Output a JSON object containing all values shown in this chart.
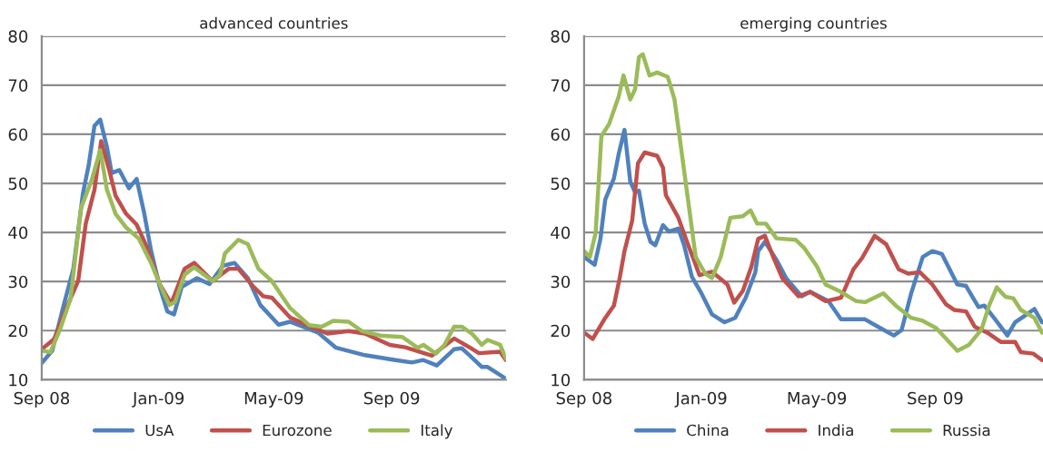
{
  "chart_data": [
    {
      "type": "line",
      "title": "advanced countries",
      "xlim": [
        "2008-09-01",
        "2009-12-29"
      ],
      "ylim": [
        10,
        80
      ],
      "yticks": [
        10,
        20,
        30,
        40,
        50,
        60,
        70,
        80
      ],
      "xticks": [
        {
          "value": "2008-09-01",
          "label": "Sep 08"
        },
        {
          "value": "2009-01-01",
          "label": "Jan-09"
        },
        {
          "value": "2009-05-01",
          "label": "May-09"
        },
        {
          "value": "2009-09-01",
          "label": "Sep 09"
        }
      ],
      "grid": "y",
      "legend": "bottom",
      "line_style": "solid",
      "marker": "none",
      "series": [
        {
          "name": "UsA",
          "color": "#4f81bd",
          "x": [
            "2008-09-01",
            "2008-09-12",
            "2008-09-23",
            "2008-10-04",
            "2008-10-14",
            "2008-10-20",
            "2008-10-26",
            "2008-11-01",
            "2008-11-08",
            "2008-11-13",
            "2008-11-21",
            "2008-12-01",
            "2008-12-09",
            "2008-12-17",
            "2008-12-24",
            "2009-01-02",
            "2009-01-10",
            "2009-01-17",
            "2009-01-25",
            "2009-02-10",
            "2009-02-23",
            "2009-03-09",
            "2009-03-21",
            "2009-04-04",
            "2009-04-17",
            "2009-05-06",
            "2009-05-18",
            "2009-06-16",
            "2009-07-05",
            "2009-08-04",
            "2009-09-05",
            "2009-09-22",
            "2009-10-04",
            "2009-10-18",
            "2009-11-05",
            "2009-11-13",
            "2009-11-21",
            "2009-12-04",
            "2009-12-10",
            "2009-12-29"
          ],
          "values": [
            13.4,
            15.9,
            24.5,
            32.6,
            48,
            53.7,
            61.7,
            63,
            57.4,
            52.1,
            52.7,
            49,
            50.9,
            43.8,
            36.3,
            28.9,
            23.9,
            23.3,
            28.9,
            30.7,
            29.5,
            33.2,
            33.8,
            30.7,
            25.2,
            21.2,
            21.8,
            19.6,
            16.5,
            15.0,
            14.0,
            13.5,
            14.0,
            12.9,
            16.2,
            16.4,
            15.0,
            12.6,
            12.6,
            10.2
          ]
        },
        {
          "name": "Eurozone",
          "color": "#c0504d",
          "x": [
            "2008-09-01",
            "2008-09-14",
            "2008-09-28",
            "2008-10-09",
            "2008-10-17",
            "2008-10-26",
            "2008-11-02",
            "2008-11-10",
            "2008-11-17",
            "2008-11-28",
            "2008-12-09",
            "2008-12-20",
            "2009-01-02",
            "2009-01-14",
            "2009-01-28",
            "2009-02-07",
            "2009-02-26",
            "2009-03-15",
            "2009-03-25",
            "2009-04-10",
            "2009-04-20",
            "2009-04-29",
            "2009-05-18",
            "2009-06-07",
            "2009-06-26",
            "2009-07-18",
            "2009-08-04",
            "2009-08-30",
            "2009-09-15",
            "2009-09-28",
            "2009-10-13",
            "2009-11-05",
            "2009-11-21",
            "2009-12-01",
            "2009-12-23",
            "2009-12-29"
          ],
          "values": [
            16.2,
            18.3,
            25.2,
            30.1,
            41.9,
            48.7,
            58.6,
            53,
            47.5,
            43.8,
            41.6,
            36.9,
            29.5,
            25.5,
            32.6,
            33.8,
            30.1,
            32.6,
            32.6,
            28.9,
            27,
            26.7,
            22.7,
            20.9,
            19.4,
            19.9,
            19.4,
            17.1,
            16.6,
            15.8,
            14.9,
            18.4,
            16.6,
            15.4,
            15.7,
            14.0
          ]
        },
        {
          "name": "Italy",
          "color": "#9bbb59",
          "x": [
            "2008-09-01",
            "2008-09-10",
            "2008-09-20",
            "2008-10-01",
            "2008-10-12",
            "2008-10-23",
            "2008-11-01",
            "2008-11-08",
            "2008-11-17",
            "2008-11-28",
            "2008-12-11",
            "2008-12-24",
            "2009-01-02",
            "2009-01-12",
            "2009-01-18",
            "2009-01-28",
            "2009-02-07",
            "2009-02-26",
            "2009-03-06",
            "2009-03-11",
            "2009-03-25",
            "2009-04-04",
            "2009-04-15",
            "2009-04-29",
            "2009-05-18",
            "2009-06-07",
            "2009-06-20",
            "2009-07-02",
            "2009-07-18",
            "2009-08-01",
            "2009-08-20",
            "2009-09-12",
            "2009-09-28",
            "2009-10-04",
            "2009-10-17",
            "2009-10-26",
            "2009-11-05",
            "2009-11-13",
            "2009-11-24",
            "2009-12-04",
            "2009-12-10",
            "2009-12-23",
            "2009-12-29"
          ],
          "values": [
            15.9,
            15.6,
            20.2,
            26.4,
            45,
            50.6,
            56.8,
            48.7,
            43.8,
            41.0,
            38.8,
            33.8,
            29.5,
            25.2,
            25.8,
            31.4,
            32.9,
            30.1,
            31.4,
            35.7,
            38.5,
            37.6,
            32.6,
            30.1,
            24.6,
            21.1,
            20.8,
            22.0,
            21.8,
            19.9,
            19.0,
            18.7,
            16.5,
            17.1,
            15.3,
            17.1,
            20.8,
            20.8,
            19.3,
            17.1,
            18.1,
            17.1,
            14.3
          ]
        }
      ]
    },
    {
      "type": "line",
      "title": "emerging countries",
      "xlim": [
        "2008-09-01",
        "2009-12-22"
      ],
      "ylim": [
        10,
        80
      ],
      "yticks": [
        10,
        20,
        30,
        40,
        50,
        60,
        70,
        80
      ],
      "xticks": [
        {
          "value": "2008-09-01",
          "label": "Sep 08"
        },
        {
          "value": "2009-01-01",
          "label": "Jan-09"
        },
        {
          "value": "2009-05-01",
          "label": "May-09"
        },
        {
          "value": "2009-09-01",
          "label": "Sep 09"
        }
      ],
      "grid": "y",
      "legend": "bottom",
      "line_style": "solid",
      "marker": "none",
      "series": [
        {
          "name": "China",
          "color": "#4f81bd",
          "x": [
            "2008-09-01",
            "2008-09-12",
            "2008-09-18",
            "2008-09-23",
            "2008-10-02",
            "2008-10-07",
            "2008-10-13",
            "2008-10-19",
            "2008-10-24",
            "2008-10-28",
            "2008-11-03",
            "2008-11-09",
            "2008-11-14",
            "2008-11-22",
            "2008-11-28",
            "2008-12-08",
            "2008-12-14",
            "2008-12-22",
            "2009-01-01",
            "2009-01-12",
            "2009-01-25",
            "2009-02-05",
            "2009-02-16",
            "2009-02-26",
            "2009-03-01",
            "2009-03-08",
            "2009-03-20",
            "2009-03-30",
            "2009-04-15",
            "2009-04-24",
            "2009-05-13",
            "2009-05-26",
            "2009-06-20",
            "2009-07-06",
            "2009-07-20",
            "2009-07-28",
            "2009-08-07",
            "2009-08-19",
            "2009-08-29",
            "2009-09-08",
            "2009-09-24",
            "2009-10-03",
            "2009-10-16",
            "2009-10-22",
            "2009-11-01",
            "2009-11-15",
            "2009-11-23",
            "2009-12-02",
            "2009-12-13",
            "2009-12-21"
          ],
          "values": [
            35.0,
            33.4,
            38.7,
            46.7,
            51,
            56,
            60.9,
            50.4,
            48.2,
            48.5,
            41.8,
            38.1,
            37.4,
            41.5,
            40.2,
            40.8,
            37.4,
            31,
            27.6,
            23.3,
            21.7,
            22.6,
            26.7,
            31.9,
            36.2,
            38.1,
            34.4,
            30.7,
            27.0,
            27.9,
            26.0,
            22.3,
            22.3,
            20.5,
            19,
            20.1,
            27.6,
            35,
            36.2,
            35.6,
            29.4,
            29.1,
            24.8,
            25.1,
            22.6,
            19.0,
            21.7,
            22.9,
            24.4,
            21.7
          ]
        },
        {
          "name": "India",
          "color": "#c0504d",
          "x": [
            "2008-09-01",
            "2008-09-10",
            "2008-09-23",
            "2008-10-02",
            "2008-10-08",
            "2008-10-13",
            "2008-10-21",
            "2008-10-27",
            "2008-11-03",
            "2008-11-16",
            "2008-11-22",
            "2008-11-25",
            "2008-12-08",
            "2008-12-17",
            "2008-12-30",
            "2009-01-12",
            "2009-01-28",
            "2009-02-04",
            "2009-02-13",
            "2009-02-22",
            "2009-03-01",
            "2009-03-08",
            "2009-03-17",
            "2009-03-26",
            "2009-04-12",
            "2009-04-24",
            "2009-05-10",
            "2009-05-26",
            "2009-06-08",
            "2009-06-17",
            "2009-06-30",
            "2009-07-12",
            "2009-07-25",
            "2009-08-04",
            "2009-08-16",
            "2009-08-29",
            "2009-09-12",
            "2009-09-21",
            "2009-10-03",
            "2009-10-12",
            "2009-10-25",
            "2009-11-08",
            "2009-11-23",
            "2009-11-29",
            "2009-12-12",
            "2009-12-21"
          ],
          "values": [
            19.6,
            18.3,
            22.6,
            25.1,
            30.7,
            36.2,
            42.4,
            54.1,
            56.3,
            55.6,
            53.2,
            47.6,
            43,
            38.1,
            31.3,
            32,
            29.4,
            25.7,
            28.1,
            33.1,
            38.7,
            39.3,
            34.8,
            30.7,
            27.0,
            27.9,
            26,
            26.7,
            32.5,
            34.8,
            39.3,
            37.6,
            32.5,
            31.6,
            31.9,
            29.4,
            25.4,
            24.2,
            23.9,
            20.8,
            19.6,
            17.7,
            17.7,
            15.6,
            15.3,
            14.0
          ]
        },
        {
          "name": "Russia",
          "color": "#9bbb59",
          "x": [
            "2008-09-01",
            "2008-09-07",
            "2008-09-13",
            "2008-09-19",
            "2008-09-27",
            "2008-10-07",
            "2008-10-12",
            "2008-10-19",
            "2008-10-24",
            "2008-10-28",
            "2008-11-01",
            "2008-11-08",
            "2008-11-16",
            "2008-11-27",
            "2008-12-04",
            "2008-12-10",
            "2008-12-18",
            "2008-12-26",
            "2009-01-05",
            "2009-01-12",
            "2009-01-21",
            "2009-01-31",
            "2009-02-13",
            "2009-02-21",
            "2009-02-28",
            "2009-03-09",
            "2009-03-20",
            "2009-04-09",
            "2009-04-18",
            "2009-05-01",
            "2009-05-10",
            "2009-05-23",
            "2009-06-11",
            "2009-06-20",
            "2009-07-09",
            "2009-07-22",
            "2009-08-07",
            "2009-08-19",
            "2009-09-02",
            "2009-09-24",
            "2009-10-06",
            "2009-10-19",
            "2009-10-27",
            "2009-11-04",
            "2009-11-13",
            "2009-11-21",
            "2009-11-29",
            "2009-12-13",
            "2009-12-21"
          ],
          "values": [
            36.2,
            35,
            39.9,
            59.6,
            62.1,
            67.7,
            72,
            67.1,
            69.2,
            75.7,
            76.3,
            72,
            72.6,
            71.7,
            67.1,
            58.4,
            46.7,
            35,
            31.6,
            30.7,
            35,
            43,
            43.3,
            44.5,
            41.8,
            41.8,
            38.8,
            38.5,
            36.8,
            33.1,
            29.4,
            28.2,
            26,
            25.8,
            27.6,
            25.1,
            22.6,
            22.0,
            20.5,
            15.9,
            17.1,
            20.2,
            25.1,
            28.8,
            26.9,
            26.6,
            24.2,
            22.6,
            19.6
          ]
        }
      ]
    }
  ]
}
